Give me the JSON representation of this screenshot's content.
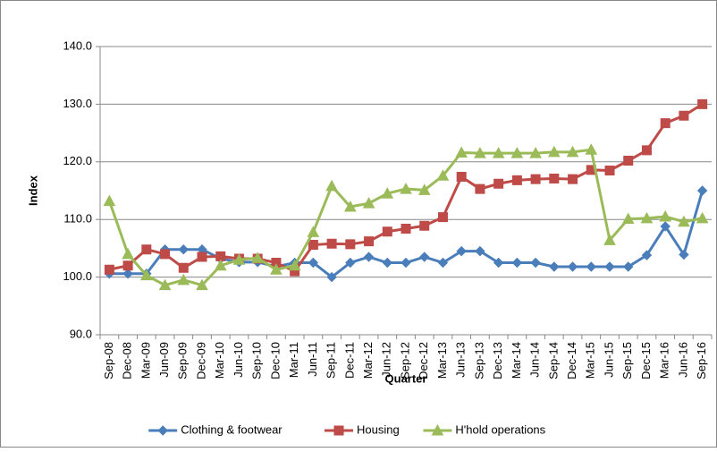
{
  "chart_data": {
    "type": "line",
    "x_label": "Quarter",
    "y_label": "Index",
    "categories": [
      "Sep-08",
      "Dec-08",
      "Mar-09",
      "Jun-09",
      "Sep-09",
      "Dec-09",
      "Mar-10",
      "Jun-10",
      "Sep-10",
      "Dec-10",
      "Mar-11",
      "Jun-11",
      "Sep-11",
      "Dec-11",
      "Mar-12",
      "Jun-12",
      "Sep-12",
      "Dec-12",
      "Mar-13",
      "Jun-13",
      "Sep-13",
      "Dec-13",
      "Mar-14",
      "Jun-14",
      "Sep-14",
      "Dec-14",
      "Mar-15",
      "Jun-15",
      "Sep-15",
      "Dec-15",
      "Mar-16",
      "Jun-16",
      "Sep-16"
    ],
    "series": [
      {
        "name": "Clothing & footwear",
        "color": "#4a7ebb",
        "marker": "diamond",
        "values": [
          100.6,
          100.6,
          100.6,
          104.8,
          104.8,
          104.8,
          103.2,
          102.6,
          102.6,
          101.8,
          102.5,
          102.5,
          100.0,
          102.5,
          103.5,
          102.5,
          102.5,
          103.5,
          102.5,
          104.5,
          104.5,
          102.5,
          102.5,
          102.5,
          101.8,
          101.8,
          101.8,
          101.8,
          101.8,
          103.8,
          108.8,
          103.9,
          115.0
        ]
      },
      {
        "name": "Housing",
        "color": "#be4b48",
        "marker": "square",
        "values": [
          101.3,
          102.0,
          104.8,
          104.0,
          101.6,
          103.5,
          103.6,
          103.2,
          103.2,
          102.5,
          101.0,
          105.6,
          105.8,
          105.7,
          106.2,
          107.9,
          108.4,
          108.9,
          110.4,
          117.4,
          115.3,
          116.2,
          116.8,
          117.0,
          117.1,
          117.0,
          118.6,
          118.5,
          120.2,
          122.0,
          126.7,
          128.0,
          130.0
        ]
      },
      {
        "name": "H'hold operations",
        "color": "#9bbb59",
        "marker": "triangle",
        "values": [
          113.2,
          104.0,
          100.3,
          98.6,
          99.5,
          98.6,
          102.0,
          103.0,
          103.3,
          101.3,
          102.0,
          107.8,
          115.8,
          112.2,
          112.8,
          114.5,
          115.3,
          115.1,
          117.6,
          121.6,
          121.5,
          121.5,
          121.5,
          121.5,
          121.7,
          121.7,
          122.1,
          106.4,
          110.1,
          110.2,
          110.5,
          109.6,
          110.2
        ]
      }
    ],
    "ylim": [
      90,
      140
    ],
    "yticks": [
      {
        "value": 90,
        "label": "90.0"
      },
      {
        "value": 100,
        "label": "100.0"
      },
      {
        "value": 110,
        "label": "110.0"
      },
      {
        "value": 120,
        "label": "120.0"
      },
      {
        "value": 130,
        "label": "130.0"
      },
      {
        "value": 140,
        "label": "140.0"
      }
    ],
    "grid": true,
    "legend": "bottom"
  }
}
